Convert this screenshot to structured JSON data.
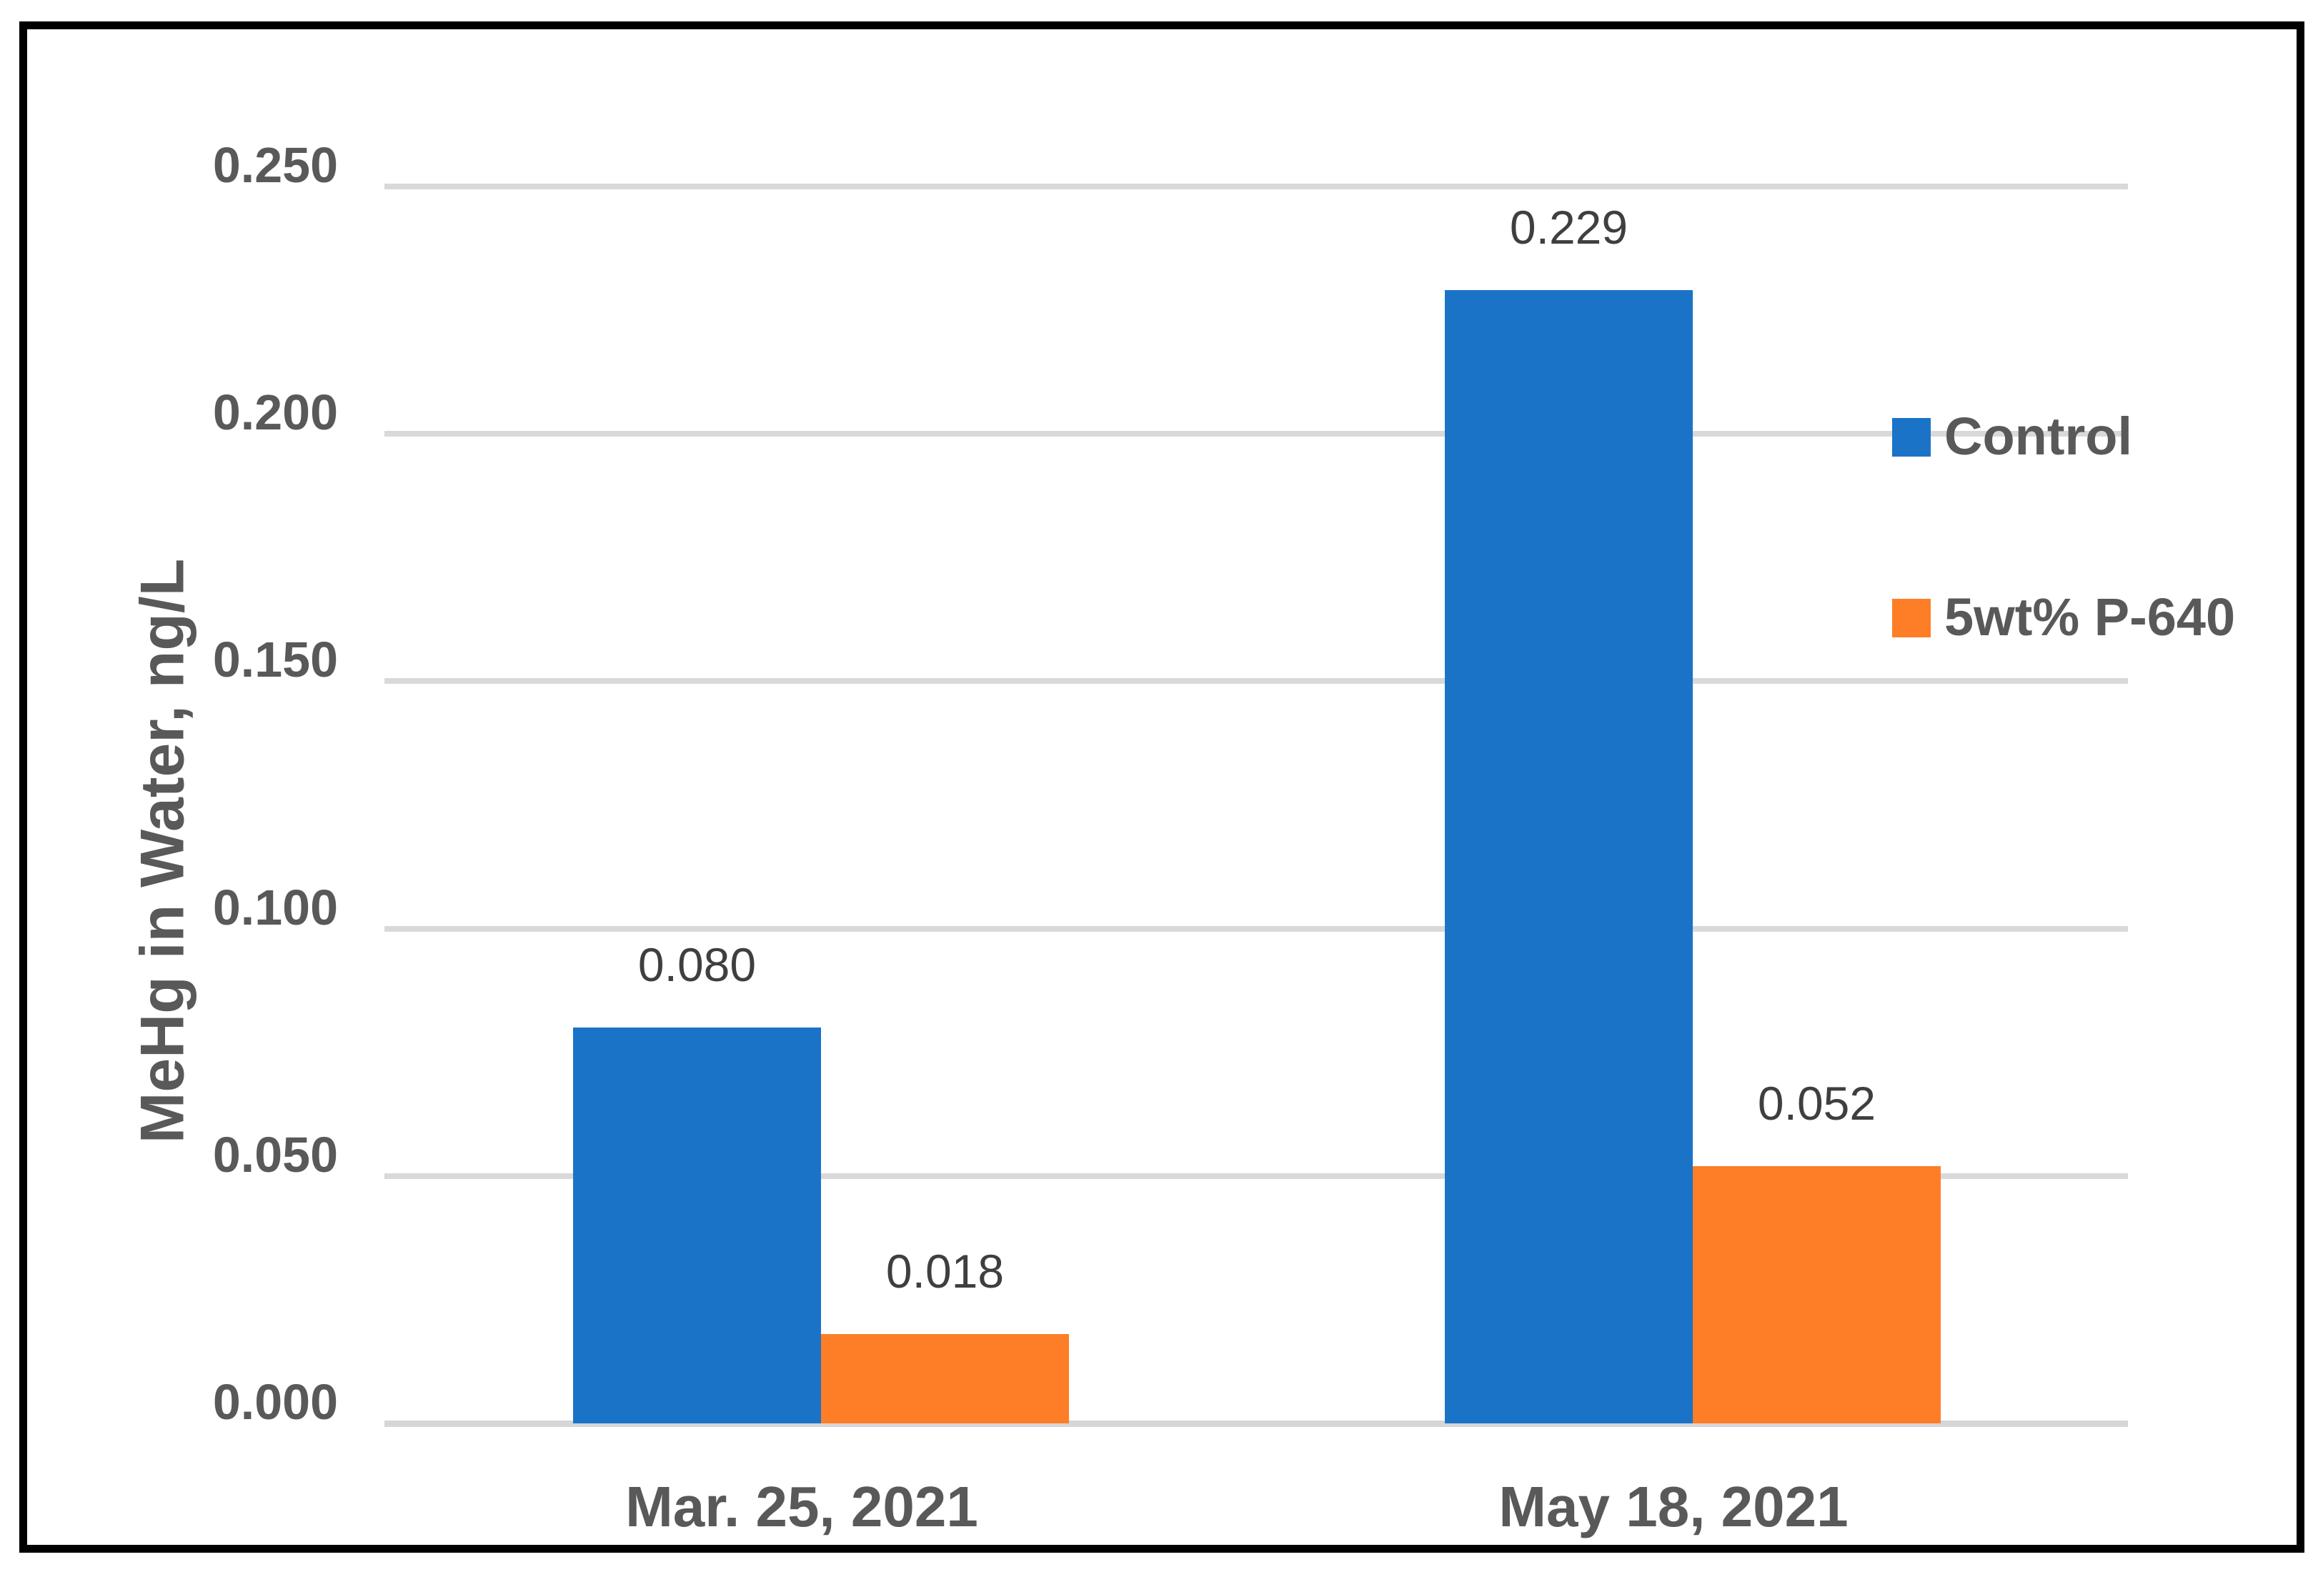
{
  "chart_data": {
    "type": "bar",
    "categories": [
      "Mar. 25, 2021",
      "May 18, 2021"
    ],
    "series": [
      {
        "name": "Control",
        "color": "#1B73C8",
        "values": [
          0.08,
          0.229
        ],
        "labels": [
          "0.080",
          "0.229"
        ]
      },
      {
        "name": "5wt% P-640",
        "color": "#FD7E27",
        "values": [
          0.018,
          0.052
        ],
        "labels": [
          "0.018",
          "0.052"
        ]
      }
    ],
    "ylabel": "MeHg in Water, ng/L",
    "xlabel": "",
    "ylim": [
      0,
      0.25
    ],
    "ytick_values": [
      0,
      0.05,
      0.1,
      0.15,
      0.2,
      0.25
    ],
    "ytick_labels": [
      "0.000",
      "0.050",
      "0.100",
      "0.150",
      "0.200",
      "0.250"
    ],
    "grid": true,
    "legend_position": "right",
    "data_labels_shown": true
  },
  "styles": {
    "gridline_color": "#D9D9D9",
    "axis_line_color": "#D6D6D9",
    "tick_label_color": "#595959",
    "data_label_color": "#3F3F3F",
    "legend_text_color": "#595959",
    "frame_color": "#000000",
    "background_color": "#FFFFFF"
  }
}
